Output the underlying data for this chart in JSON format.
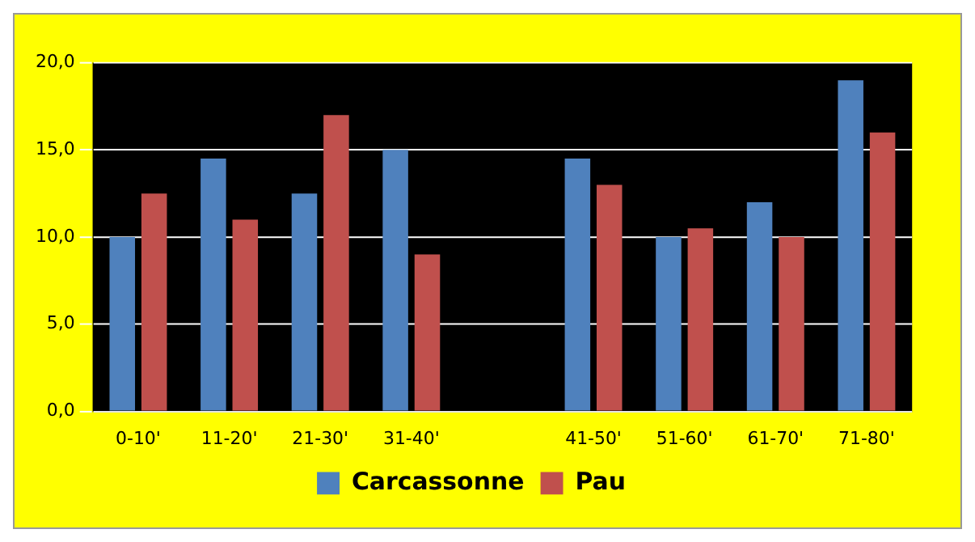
{
  "chart_data": {
    "type": "bar",
    "categories": [
      "0-10'",
      "11-20'",
      "21-30'",
      "31-40'",
      null,
      "41-50'",
      "51-60'",
      "61-70'",
      "71-80'"
    ],
    "series": [
      {
        "name": "Carcassonne",
        "color": "#4f81bd",
        "values": [
          10,
          14.5,
          12.5,
          15,
          null,
          14.5,
          10,
          12,
          19
        ]
      },
      {
        "name": "Pau",
        "color": "#c0504d",
        "values": [
          12.5,
          11,
          17,
          9,
          null,
          13,
          10.5,
          10,
          16
        ]
      }
    ],
    "ylim": [
      0,
      20
    ],
    "yticks": [
      {
        "value": 0,
        "label": "0,0"
      },
      {
        "value": 5,
        "label": "5,0"
      },
      {
        "value": 10,
        "label": "10,0"
      },
      {
        "value": 15,
        "label": "15,0"
      },
      {
        "value": 20,
        "label": "20,0"
      }
    ],
    "grid": "y",
    "legend": "bottom"
  }
}
